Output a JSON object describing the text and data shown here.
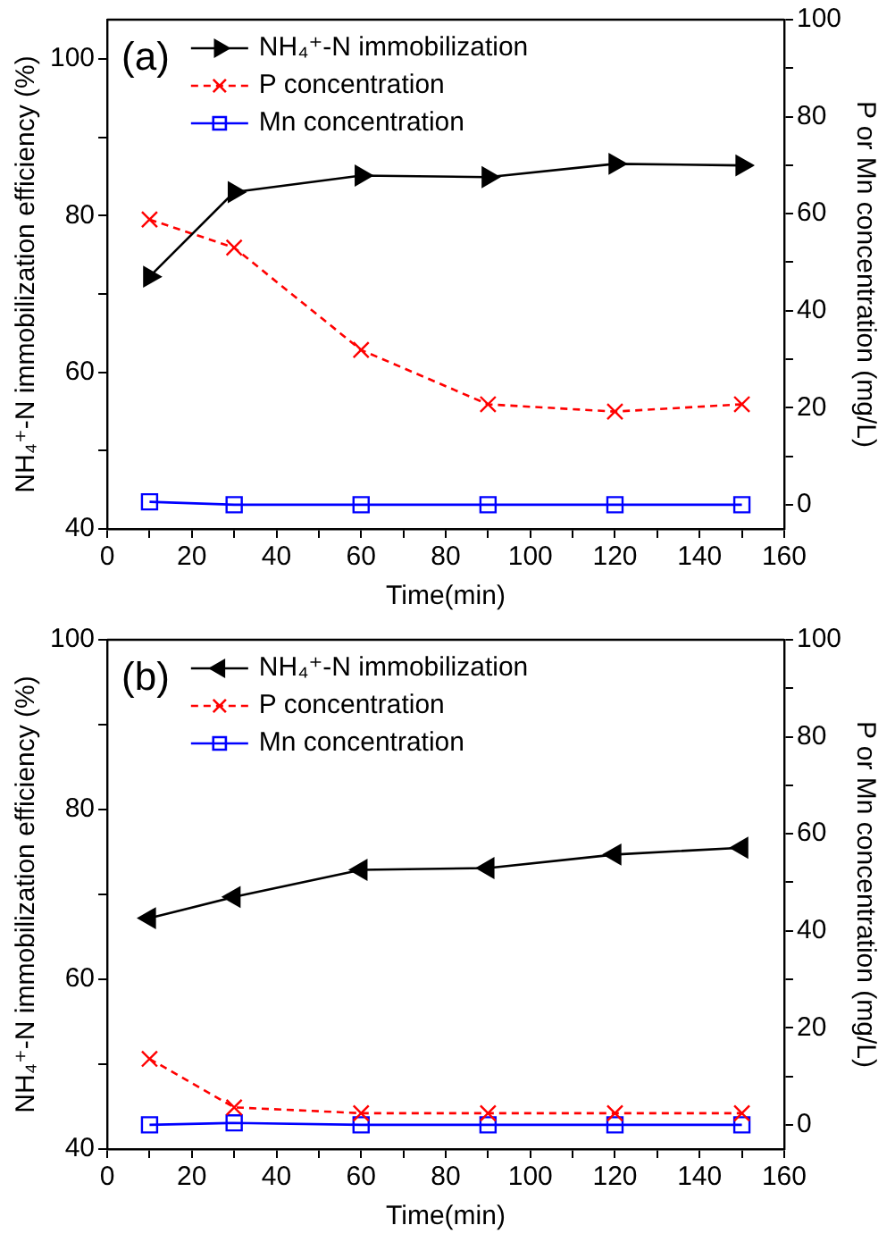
{
  "chart_data": [
    {
      "type": "line",
      "annotations": [
        "(a)"
      ],
      "xlabel": "Time(min)",
      "ylabel": "NH₄⁺-N immobilization efficiency (%)",
      "y2label": "P or Mn concentration (mg/L)",
      "x": [
        10,
        30,
        60,
        90,
        120,
        150
      ],
      "series": [
        {
          "name": "NH₄⁺-N immobilization",
          "color": "#000000",
          "marker": "triangle",
          "line_style": "solid",
          "values": [
            72.2,
            83,
            85.1,
            84.9,
            86.6,
            86.4
          ]
        },
        {
          "name": "P concentration",
          "color": "#ff0000",
          "marker": "cross",
          "line_style": "dashed",
          "axis": "y2",
          "values": [
            58.8,
            53,
            31.9,
            20.7,
            19.2,
            20.7
          ]
        },
        {
          "name": "Mn concentration",
          "color": "#0000ff",
          "marker": "square",
          "line_style": "solid",
          "axis": "y2",
          "values": [
            0.6,
            0,
            0,
            0,
            0,
            0
          ]
        }
      ],
      "xlim": [
        0,
        160
      ],
      "xticks": [
        0,
        {
          "value": 10,
          "label": null
        },
        20,
        {
          "value": 30,
          "label": null
        },
        40,
        {
          "value": 50,
          "label": null
        },
        60,
        {
          "value": 70,
          "label": null
        },
        80,
        {
          "value": 90,
          "label": null
        },
        100,
        {
          "value": 110,
          "label": null
        },
        120,
        {
          "value": 130,
          "label": null
        },
        140,
        {
          "value": 150,
          "label": null
        },
        160
      ],
      "ylim": [
        40,
        105
      ],
      "yticks": [
        40,
        {
          "value": 50,
          "label": null
        },
        60,
        {
          "value": 70,
          "label": null
        },
        80,
        {
          "value": 90,
          "label": null
        },
        100
      ],
      "y2lim": [
        -5,
        100
      ],
      "y2ticks": [
        0,
        {
          "value": 10,
          "label": null
        },
        20,
        {
          "value": 30,
          "label": null
        },
        40,
        {
          "value": 50,
          "label": null
        },
        60,
        {
          "value": 70,
          "label": null
        },
        80,
        {
          "value": 90,
          "label": null
        },
        100
      ],
      "grid": false,
      "legend": "top left"
    },
    {
      "type": "line",
      "annotations": [
        "(b)"
      ],
      "xlabel": "Time(min)",
      "ylabel": "NH₄⁺-N immobilization efficiency (%)",
      "y2label": "P or Mn concentration (mg/L)",
      "x": [
        10,
        30,
        60,
        90,
        120,
        150
      ],
      "series": [
        {
          "name": "NH₄⁺-N immobilization",
          "color": "#000000",
          "marker": "triangle",
          "line_style": "solid",
          "values": [
            67.2,
            69.7,
            72.9,
            73.1,
            74.7,
            75.5
          ]
        },
        {
          "name": "P concentration",
          "color": "#ff0000",
          "marker": "cross",
          "line_style": "dashed",
          "axis": "y2",
          "values": [
            13.6,
            3.6,
            2.4,
            2.4,
            2.4,
            2.4
          ]
        },
        {
          "name": "Mn concentration",
          "color": "#0000ff",
          "marker": "square",
          "line_style": "solid",
          "axis": "y2",
          "values": [
            0,
            0.4,
            0,
            0,
            0,
            0
          ]
        }
      ],
      "xlim": [
        0,
        160
      ],
      "xticks": [
        0,
        {
          "value": 10,
          "label": null
        },
        20,
        {
          "value": 30,
          "label": null
        },
        40,
        {
          "value": 50,
          "label": null
        },
        60,
        {
          "value": 70,
          "label": null
        },
        80,
        {
          "value": 90,
          "label": null
        },
        100,
        {
          "value": 110,
          "label": null
        },
        120,
        {
          "value": 130,
          "label": null
        },
        140,
        {
          "value": 150,
          "label": null
        },
        160
      ],
      "ylim": [
        40,
        100
      ],
      "yticks": [
        40,
        {
          "value": 50,
          "label": null
        },
        60,
        {
          "value": 70,
          "label": null
        },
        80,
        {
          "value": 90,
          "label": null
        },
        100
      ],
      "y2lim": [
        -5,
        100
      ],
      "y2ticks": [
        0,
        {
          "value": 10,
          "label": null
        },
        20,
        {
          "value": 30,
          "label": null
        },
        40,
        {
          "value": 50,
          "label": null
        },
        60,
        {
          "value": 70,
          "label": null
        },
        80,
        {
          "value": 90,
          "label": null
        },
        100
      ],
      "grid": false,
      "legend": "top left"
    }
  ]
}
